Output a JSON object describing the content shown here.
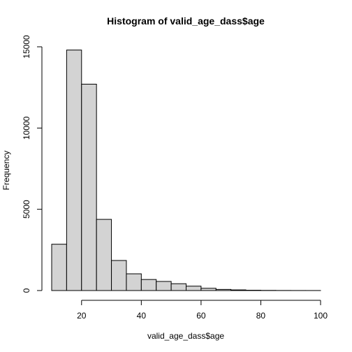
{
  "chart_data": {
    "type": "bar",
    "title": "Histogram of valid_age_dass$age",
    "xlabel": "valid_age_dass$age",
    "ylabel": "Frequency",
    "bin_width": 5,
    "bins": [
      {
        "x0": 10,
        "x1": 15,
        "count": 2850
      },
      {
        "x0": 15,
        "x1": 20,
        "count": 14800
      },
      {
        "x0": 20,
        "x1": 25,
        "count": 12700
      },
      {
        "x0": 25,
        "x1": 30,
        "count": 4380
      },
      {
        "x0": 30,
        "x1": 35,
        "count": 1850
      },
      {
        "x0": 35,
        "x1": 40,
        "count": 1030
      },
      {
        "x0": 40,
        "x1": 45,
        "count": 680
      },
      {
        "x0": 45,
        "x1": 50,
        "count": 560
      },
      {
        "x0": 50,
        "x1": 55,
        "count": 420
      },
      {
        "x0": 55,
        "x1": 60,
        "count": 270
      },
      {
        "x0": 60,
        "x1": 65,
        "count": 140
      },
      {
        "x0": 65,
        "x1": 70,
        "count": 70
      },
      {
        "x0": 70,
        "x1": 75,
        "count": 40
      },
      {
        "x0": 75,
        "x1": 80,
        "count": 20
      },
      {
        "x0": 80,
        "x1": 85,
        "count": 10
      },
      {
        "x0": 85,
        "x1": 90,
        "count": 5
      },
      {
        "x0": 90,
        "x1": 95,
        "count": 3
      },
      {
        "x0": 95,
        "x1": 100,
        "count": 2
      }
    ],
    "xticks": [
      20,
      40,
      60,
      80,
      100
    ],
    "xtick_labels": [
      "20",
      "40",
      "60",
      "80",
      "100"
    ],
    "yticks": [
      0,
      5000,
      10000,
      15000
    ],
    "ytick_labels": [
      "0",
      "5000",
      "10000",
      "15000"
    ],
    "xlim": [
      10,
      100
    ],
    "ylim": [
      0,
      15000
    ],
    "grid": false,
    "colors": {
      "bar_fill": "#d3d3d3",
      "bar_stroke": "#000000",
      "axis": "#000000"
    }
  }
}
